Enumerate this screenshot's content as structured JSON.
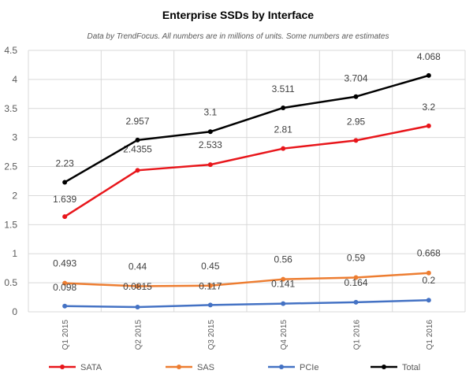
{
  "chart_data": {
    "type": "line",
    "title": "Enterprise SSDs by Interface",
    "subtitle": "Data by TrendFocus. All numbers are in millions of units. Some numbers are estimates",
    "categories": [
      "Q1 2015",
      "Q2 2015",
      "Q3 2015",
      "Q4 2015",
      "Q1 2016",
      "Q1 2016"
    ],
    "ylim": [
      0,
      4.5
    ],
    "ytick_labels": [
      "0",
      "0.5",
      "1",
      "1.5",
      "2",
      "2.5",
      "3",
      "3.5",
      "4",
      "4.5"
    ],
    "grid": "horizontal-and-vertical",
    "legend_position": "bottom",
    "series": [
      {
        "name": "SATA",
        "color": "#e8161b",
        "values": [
          1.639,
          2.4355,
          2.533,
          2.81,
          2.95,
          3.2
        ],
        "labels": [
          "1.639",
          "2.4355",
          "2.533",
          "2.81",
          "2.95",
          "3.2"
        ]
      },
      {
        "name": "SAS",
        "color": "#ed7d31",
        "values": [
          0.493,
          0.44,
          0.45,
          0.56,
          0.59,
          0.668
        ],
        "labels": [
          "0.493",
          "0.44",
          "0.45",
          "0.56",
          "0.59",
          "0.668"
        ]
      },
      {
        "name": "PCIe",
        "color": "#4472c4",
        "values": [
          0.098,
          0.0815,
          0.117,
          0.141,
          0.164,
          0.2
        ],
        "labels": [
          "0.098",
          "0.0815",
          "0.117",
          "0.141",
          "0.164",
          "0.2"
        ]
      },
      {
        "name": "Total",
        "color": "#000000",
        "values": [
          2.23,
          2.957,
          3.1,
          3.511,
          3.704,
          4.068
        ],
        "labels": [
          "2.23",
          "2.957",
          "3.1",
          "3.511",
          "3.704",
          "4.068"
        ]
      }
    ]
  }
}
